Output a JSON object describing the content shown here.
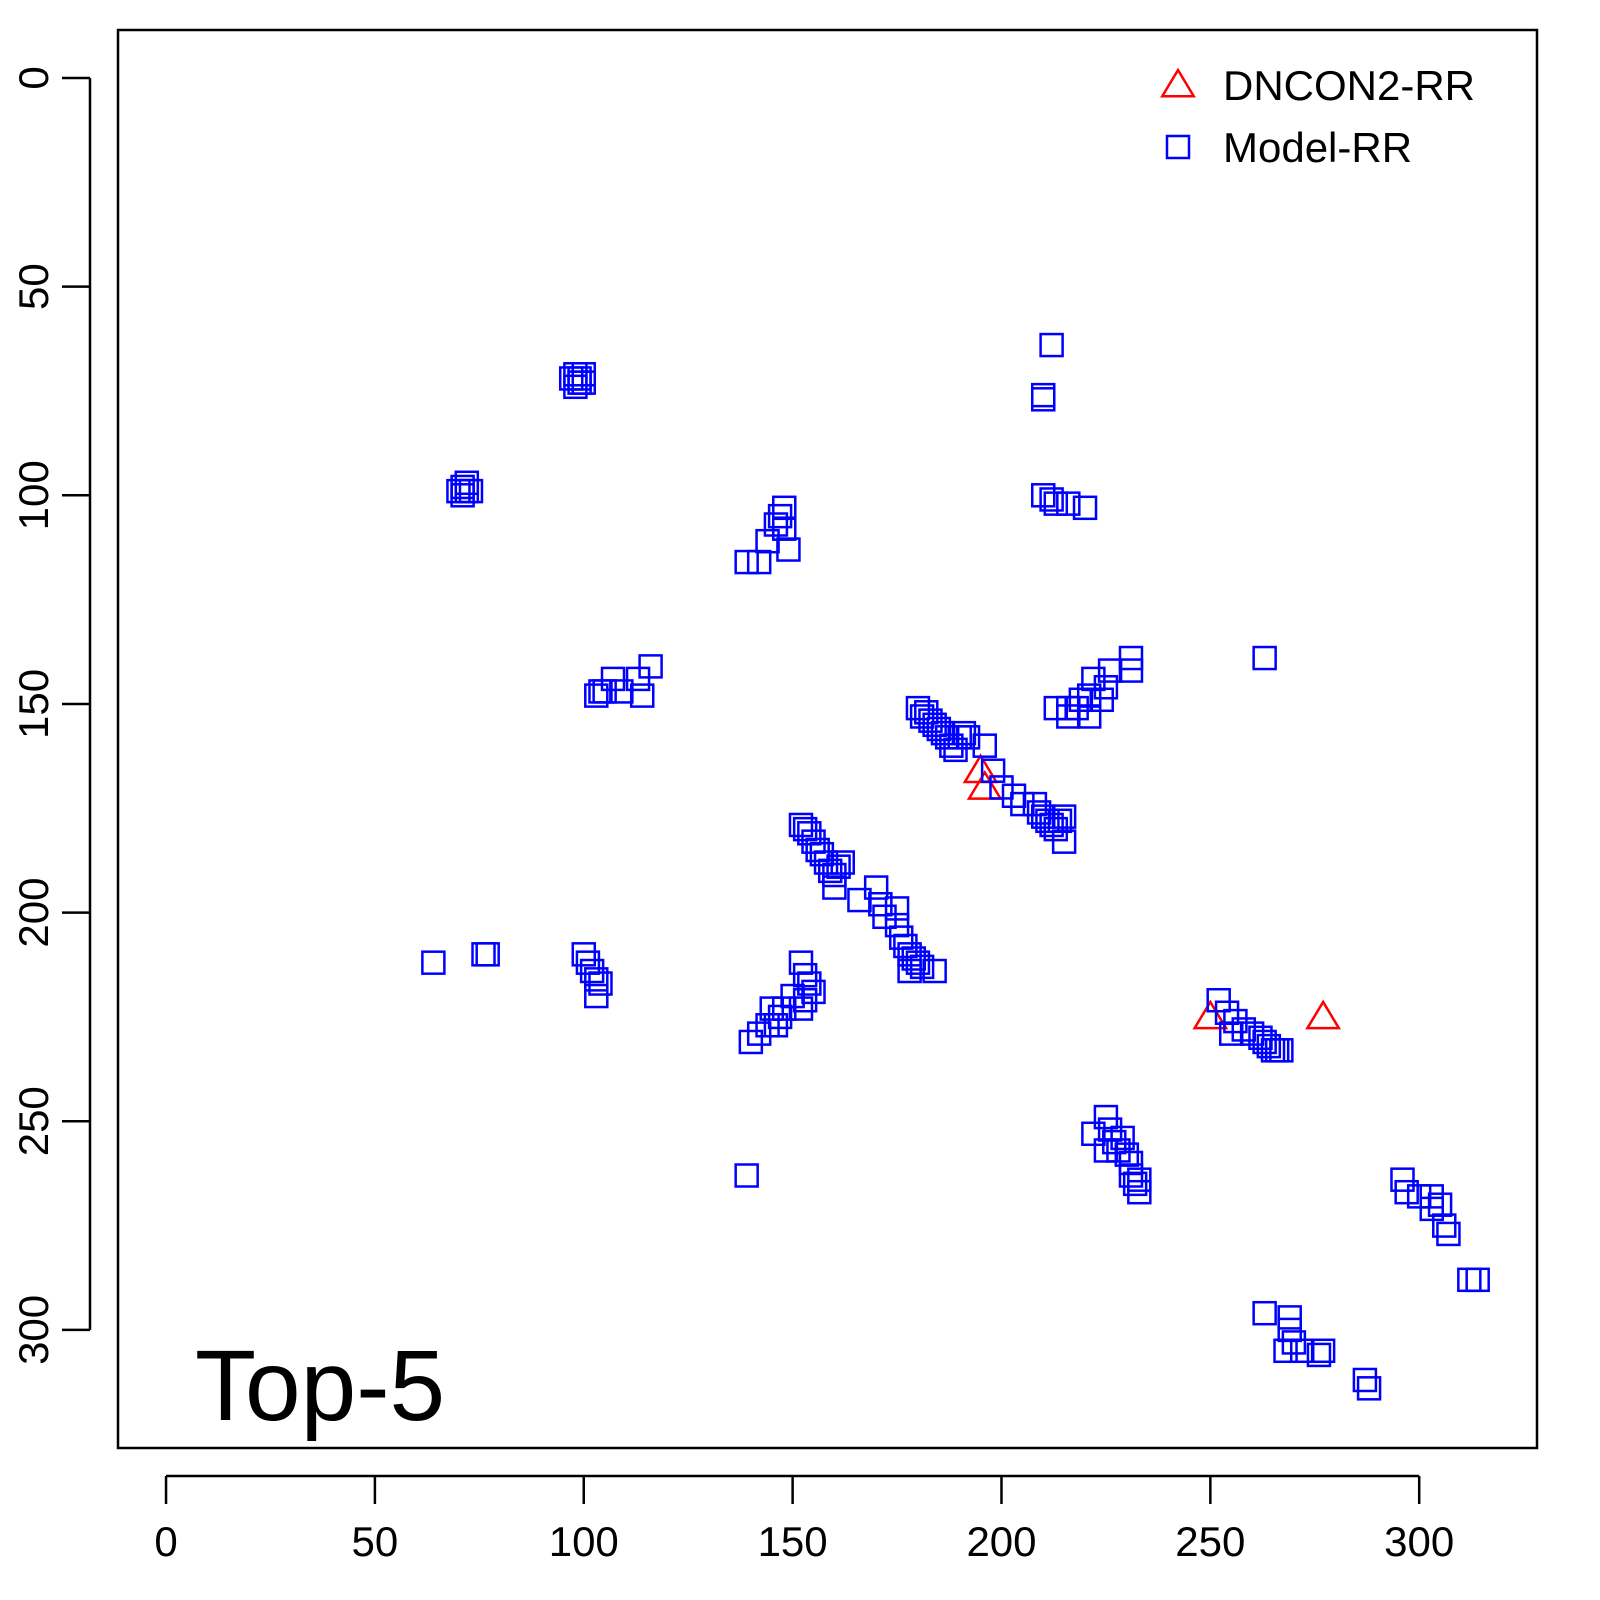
{
  "chart_data": {
    "type": "scatter",
    "annotation": "Top-5",
    "xlim": [
      -11.5,
      328.2
    ],
    "ylim": [
      328.3,
      -11.5
    ],
    "xticks": [
      0,
      50,
      100,
      150,
      200,
      250,
      300
    ],
    "yticks": [
      0,
      50,
      100,
      150,
      200,
      250,
      300
    ],
    "legend": "topright",
    "series": [
      {
        "name": "DNCON2-RR",
        "color": "#ff0000",
        "marker": "triangle",
        "x": [
          195,
          196,
          250,
          277
        ],
        "y": [
          166,
          170,
          225,
          225
        ]
      },
      {
        "name": "Model-RR",
        "color": "#0000ff",
        "marker": "square",
        "x": [
          98,
          99,
          100,
          99,
          97,
          100,
          98,
          71,
          72,
          71,
          72,
          70,
          73,
          212,
          210,
          210,
          210,
          212,
          213,
          216,
          220,
          148,
          147,
          146,
          144,
          149,
          142,
          139,
          148,
          263,
          116,
          113,
          107,
          105,
          103,
          104,
          114,
          109,
          231,
          231,
          226,
          225,
          222,
          221,
          219,
          218,
          216,
          213,
          216,
          221,
          224,
          180,
          181,
          182,
          183,
          184,
          185,
          186,
          187,
          188,
          189,
          190,
          191,
          192,
          196,
          198,
          200,
          203,
          205,
          208,
          209,
          210,
          211,
          212,
          213,
          214,
          215,
          215,
          152,
          153,
          154,
          155,
          156,
          157,
          158,
          159,
          160,
          161,
          162,
          160,
          166,
          170,
          171,
          172,
          175,
          175,
          176,
          177,
          178,
          179,
          180,
          181,
          184,
          178,
          64,
          76,
          77,
          100,
          101,
          102,
          103,
          104,
          103,
          152,
          153,
          154,
          155,
          153,
          152,
          150,
          148,
          147,
          145,
          144,
          142,
          140,
          146,
          252,
          254,
          256,
          258,
          260,
          262,
          263,
          264,
          265,
          266,
          267,
          255,
          139,
          225,
          222,
          226,
          227,
          228,
          229,
          230,
          231,
          231,
          232,
          233,
          233,
          225,
          296,
          297,
          300,
          303,
          305,
          306,
          307,
          312,
          314,
          303,
          263,
          269,
          269,
          270,
          272,
          276,
          277,
          287,
          288,
          268
        ],
        "y": [
          71,
          72,
          71,
          73,
          72,
          73,
          74,
          98,
          99,
          100,
          97,
          99,
          99,
          64,
          76,
          77,
          100,
          101,
          102,
          102,
          103,
          103,
          105,
          107,
          111,
          113,
          116,
          116,
          108,
          139,
          141,
          144,
          144,
          147,
          148,
          147,
          148,
          147,
          139,
          142,
          142,
          146,
          144,
          148,
          149,
          151,
          151,
          151,
          153,
          153,
          149,
          151,
          153,
          152,
          154,
          155,
          156,
          157,
          158,
          160,
          161,
          158,
          157,
          158,
          160,
          166,
          170,
          172,
          174,
          174,
          176,
          177,
          178,
          179,
          180,
          178,
          177,
          183,
          179,
          180,
          181,
          183,
          185,
          186,
          188,
          190,
          191,
          189,
          188,
          194,
          197,
          194,
          198,
          201,
          199,
          203,
          206,
          208,
          210,
          211,
          212,
          213,
          214,
          214,
          212,
          210,
          210,
          210,
          212,
          214,
          216,
          217,
          220,
          212,
          215,
          217,
          219,
          221,
          223,
          220,
          223,
          225,
          223,
          227,
          229,
          231,
          227,
          221,
          224,
          226,
          228,
          229,
          230,
          231,
          232,
          233,
          233,
          233,
          229,
          263,
          249,
          253,
          252,
          255,
          257,
          254,
          258,
          260,
          263,
          265,
          264,
          267,
          257,
          264,
          267,
          268,
          268,
          270,
          275,
          277,
          288,
          288,
          271,
          296,
          297,
          300,
          303,
          305,
          306,
          305,
          312,
          314,
          305
        ]
      }
    ]
  }
}
